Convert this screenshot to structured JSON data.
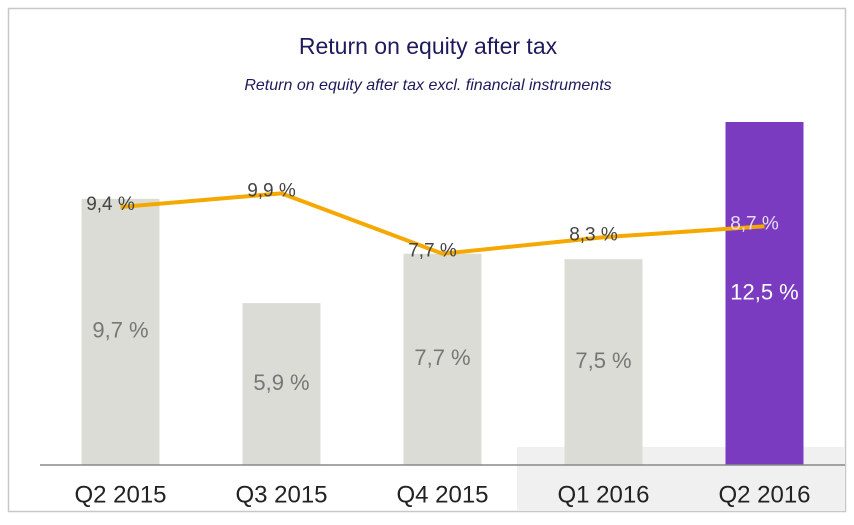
{
  "chart_data": {
    "type": "bar",
    "title": "Return on equity after tax",
    "subtitle": "Return on equity after tax excl. financial instruments",
    "categories": [
      "Q2 2015",
      "Q3 2015",
      "Q4 2015",
      "Q1 2016",
      "Q2 2016"
    ],
    "series": [
      {
        "type": "bar",
        "colors": [
          "#dcdcd6",
          "#dcdcd6",
          "#dcdcd6",
          "#dcdcd6",
          "#7a3bc0"
        ],
        "values": [
          9.7,
          5.9,
          7.7,
          7.5,
          12.5
        ],
        "value_labels": [
          "9,7 %",
          "5,9 %",
          "7,7 %",
          "7,5 %",
          "12,5 %"
        ]
      },
      {
        "type": "line",
        "color": "#f5a800",
        "values": [
          9.4,
          9.9,
          7.7,
          8.3,
          8.7
        ],
        "value_labels": [
          "9,4 %",
          "9,9 %",
          "7,7 %",
          "8,3 %",
          "8,7 %"
        ]
      }
    ]
  }
}
